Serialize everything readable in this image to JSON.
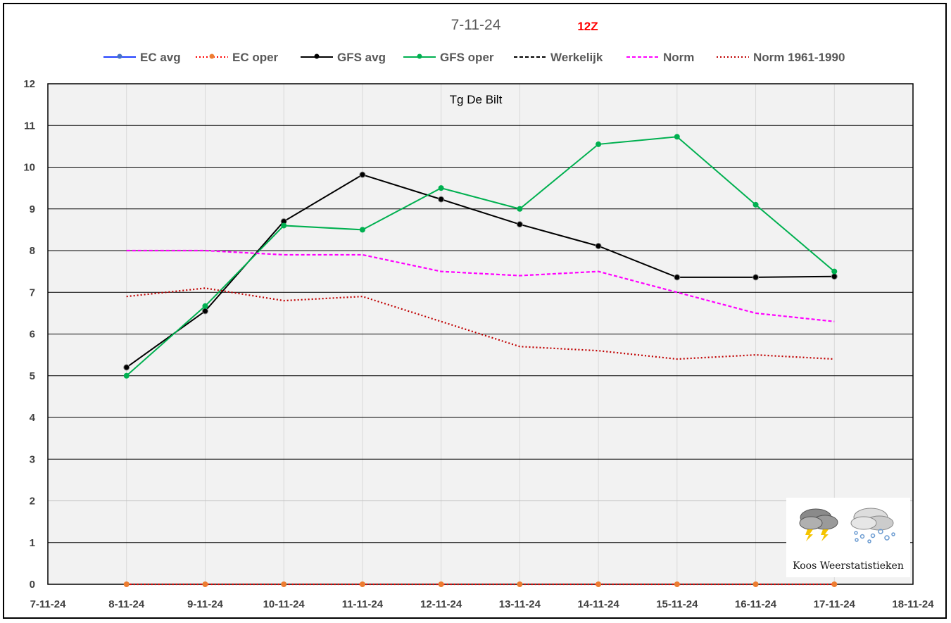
{
  "chart_data": {
    "type": "line",
    "title": "7-11-24",
    "run_label": "12Z",
    "subtitle": "Tg De Bilt",
    "categories": [
      "7-11-24",
      "8-11-24",
      "9-11-24",
      "10-11-24",
      "11-11-24",
      "12-11-24",
      "13-11-24",
      "14-11-24",
      "15-11-24",
      "16-11-24",
      "17-11-24",
      "18-11-24"
    ],
    "ylim": [
      0,
      12
    ],
    "yticks": [
      0,
      1,
      2,
      3,
      4,
      5,
      6,
      7,
      8,
      9,
      10,
      11,
      12
    ],
    "legend_position": "top",
    "grid": true,
    "series": [
      {
        "name": "EC avg",
        "color": "#1f3fff",
        "marker": "#4472c4",
        "style": "solid",
        "x": [],
        "values": []
      },
      {
        "name": "EC oper",
        "color": "#ff0000",
        "marker": "#ed7d31",
        "style": "dotted-red",
        "x": [
          "8-11-24",
          "9-11-24",
          "10-11-24",
          "11-11-24",
          "12-11-24",
          "13-11-24",
          "14-11-24",
          "15-11-24",
          "16-11-24",
          "17-11-24"
        ],
        "values": [
          0,
          0,
          0,
          0,
          0,
          0,
          0,
          0,
          0,
          0
        ]
      },
      {
        "name": "GFS avg",
        "color": "#000000",
        "marker": "#000000",
        "style": "solid",
        "x": [
          "8-11-24",
          "9-11-24",
          "10-11-24",
          "11-11-24",
          "12-11-24",
          "13-11-24",
          "14-11-24",
          "15-11-24",
          "16-11-24",
          "17-11-24"
        ],
        "values": [
          5.2,
          6.55,
          8.7,
          9.82,
          9.23,
          8.63,
          8.11,
          7.36,
          7.36,
          7.38
        ]
      },
      {
        "name": "GFS oper",
        "color": "#00b050",
        "marker": "#00b050",
        "style": "solid",
        "x": [
          "8-11-24",
          "9-11-24",
          "10-11-24",
          "11-11-24",
          "12-11-24",
          "13-11-24",
          "14-11-24",
          "15-11-24",
          "16-11-24",
          "17-11-24"
        ],
        "values": [
          5.0,
          6.67,
          8.6,
          8.5,
          9.5,
          9.0,
          10.55,
          10.73,
          9.1,
          7.5
        ]
      },
      {
        "name": "Werkelijk",
        "color": "#000000",
        "marker": null,
        "style": "dashed",
        "x": [],
        "values": []
      },
      {
        "name": "Norm",
        "color": "#ff00ff",
        "marker": null,
        "style": "dashed",
        "x": [
          "8-11-24",
          "9-11-24",
          "10-11-24",
          "11-11-24",
          "12-11-24",
          "13-11-24",
          "14-11-24",
          "15-11-24",
          "16-11-24",
          "17-11-24"
        ],
        "values": [
          8.0,
          8.0,
          7.9,
          7.9,
          7.5,
          7.4,
          7.5,
          7.0,
          6.5,
          6.3
        ]
      },
      {
        "name": "Norm 1961-1990",
        "color": "#c00000",
        "marker": null,
        "style": "dotted",
        "x": [
          "8-11-24",
          "9-11-24",
          "10-11-24",
          "11-11-24",
          "12-11-24",
          "13-11-24",
          "14-11-24",
          "15-11-24",
          "16-11-24",
          "17-11-24"
        ],
        "values": [
          6.9,
          7.1,
          6.8,
          6.9,
          6.3,
          5.7,
          5.6,
          5.4,
          5.5,
          5.4
        ]
      }
    ]
  },
  "logo": {
    "text": "Koos Weerstatistieken"
  }
}
